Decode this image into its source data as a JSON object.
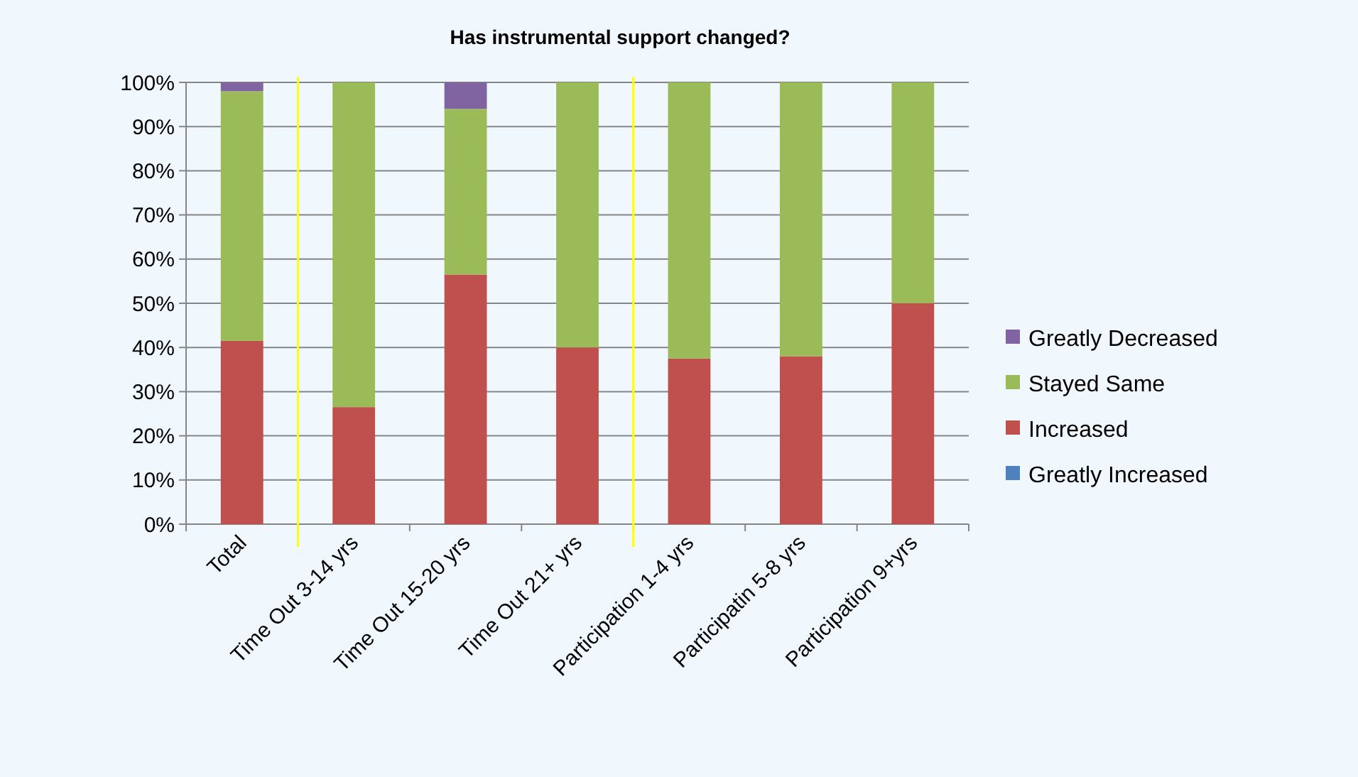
{
  "chart_data": {
    "type": "bar",
    "title": "Has instrumental support  changed?",
    "stacked": true,
    "categories": [
      "Total",
      "Time Out 3-14 yrs",
      "Time Out 15-20 yrs",
      "Time Out 21+ yrs",
      "Participation 1-4 yrs",
      "Participatin 5-8 yrs",
      "Participation 9+yrs"
    ],
    "series": [
      {
        "name": "Greatly Increased",
        "color": "#4f81bd",
        "values": [
          0,
          0,
          0,
          0,
          0,
          0,
          0
        ]
      },
      {
        "name": "Increased",
        "color": "#c0504d",
        "values": [
          41.5,
          26.5,
          56.5,
          40,
          37.5,
          38,
          50
        ]
      },
      {
        "name": "Stayed Same",
        "color": "#9bbb59",
        "values": [
          56.5,
          73.5,
          37.5,
          60,
          62.5,
          62,
          50
        ]
      },
      {
        "name": "Greatly Decreased",
        "color": "#8064a2",
        "values": [
          2,
          0,
          6,
          0,
          0,
          0,
          0
        ]
      }
    ],
    "ylim": [
      0,
      100
    ],
    "yticks": [
      {
        "value": 0,
        "label": "0%"
      },
      {
        "value": 10,
        "label": "10%"
      },
      {
        "value": 20,
        "label": "20%"
      },
      {
        "value": 30,
        "label": "30%"
      },
      {
        "value": 40,
        "label": "40%"
      },
      {
        "value": 50,
        "label": "50%"
      },
      {
        "value": 60,
        "label": "60%"
      },
      {
        "value": 70,
        "label": "70%"
      },
      {
        "value": 80,
        "label": "80%"
      },
      {
        "value": 90,
        "label": "90%"
      },
      {
        "value": 100,
        "label": "100%"
      }
    ],
    "grid": "y",
    "legend": "right"
  }
}
